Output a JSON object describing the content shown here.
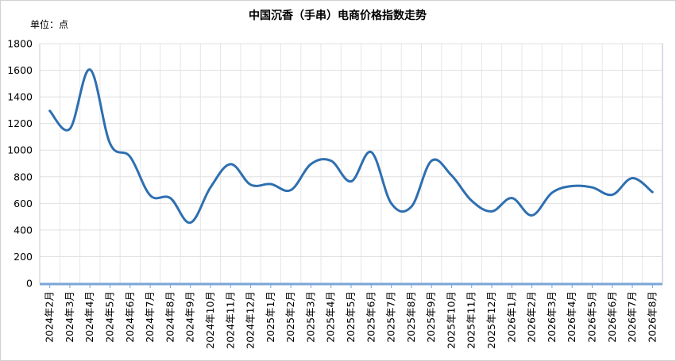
{
  "chart_data": {
    "type": "line",
    "title": "中国沉香（手串）电商价格指数走势",
    "unit_label": "单位：点",
    "ylim": [
      0,
      1800
    ],
    "yticks": [
      0,
      200,
      400,
      600,
      800,
      1000,
      1200,
      1400,
      1600,
      1800
    ],
    "grid": true,
    "legend": "none",
    "line_color": "#2e6fb0",
    "x": [
      "2024年2月",
      "2024年3月",
      "2024年4月",
      "2024年5月",
      "2024年6月",
      "2024年7月",
      "2024年8月",
      "2024年9月",
      "2024年10月",
      "2024年11月",
      "2024年12月",
      "2025年1月",
      "2025年2月",
      "2025年3月",
      "2025年4月",
      "2025年5月",
      "2025年6月",
      "2025年7月",
      "2025年8月",
      "2025年9月",
      "2025年10月",
      "2025年11月",
      "2025年12月",
      "2026年1月",
      "2026年2月",
      "2026年3月",
      "2026年4月",
      "2026年5月",
      "2026年6月",
      "2026年7月",
      "2026年8月"
    ],
    "series": [
      {
        "values": [
          1295,
          1160,
          1605,
          1050,
          950,
          660,
          640,
          455,
          720,
          895,
          740,
          745,
          700,
          895,
          920,
          765,
          985,
          600,
          575,
          920,
          810,
          620,
          540,
          640,
          510,
          680,
          730,
          720,
          665,
          790,
          685
        ]
      }
    ]
  }
}
